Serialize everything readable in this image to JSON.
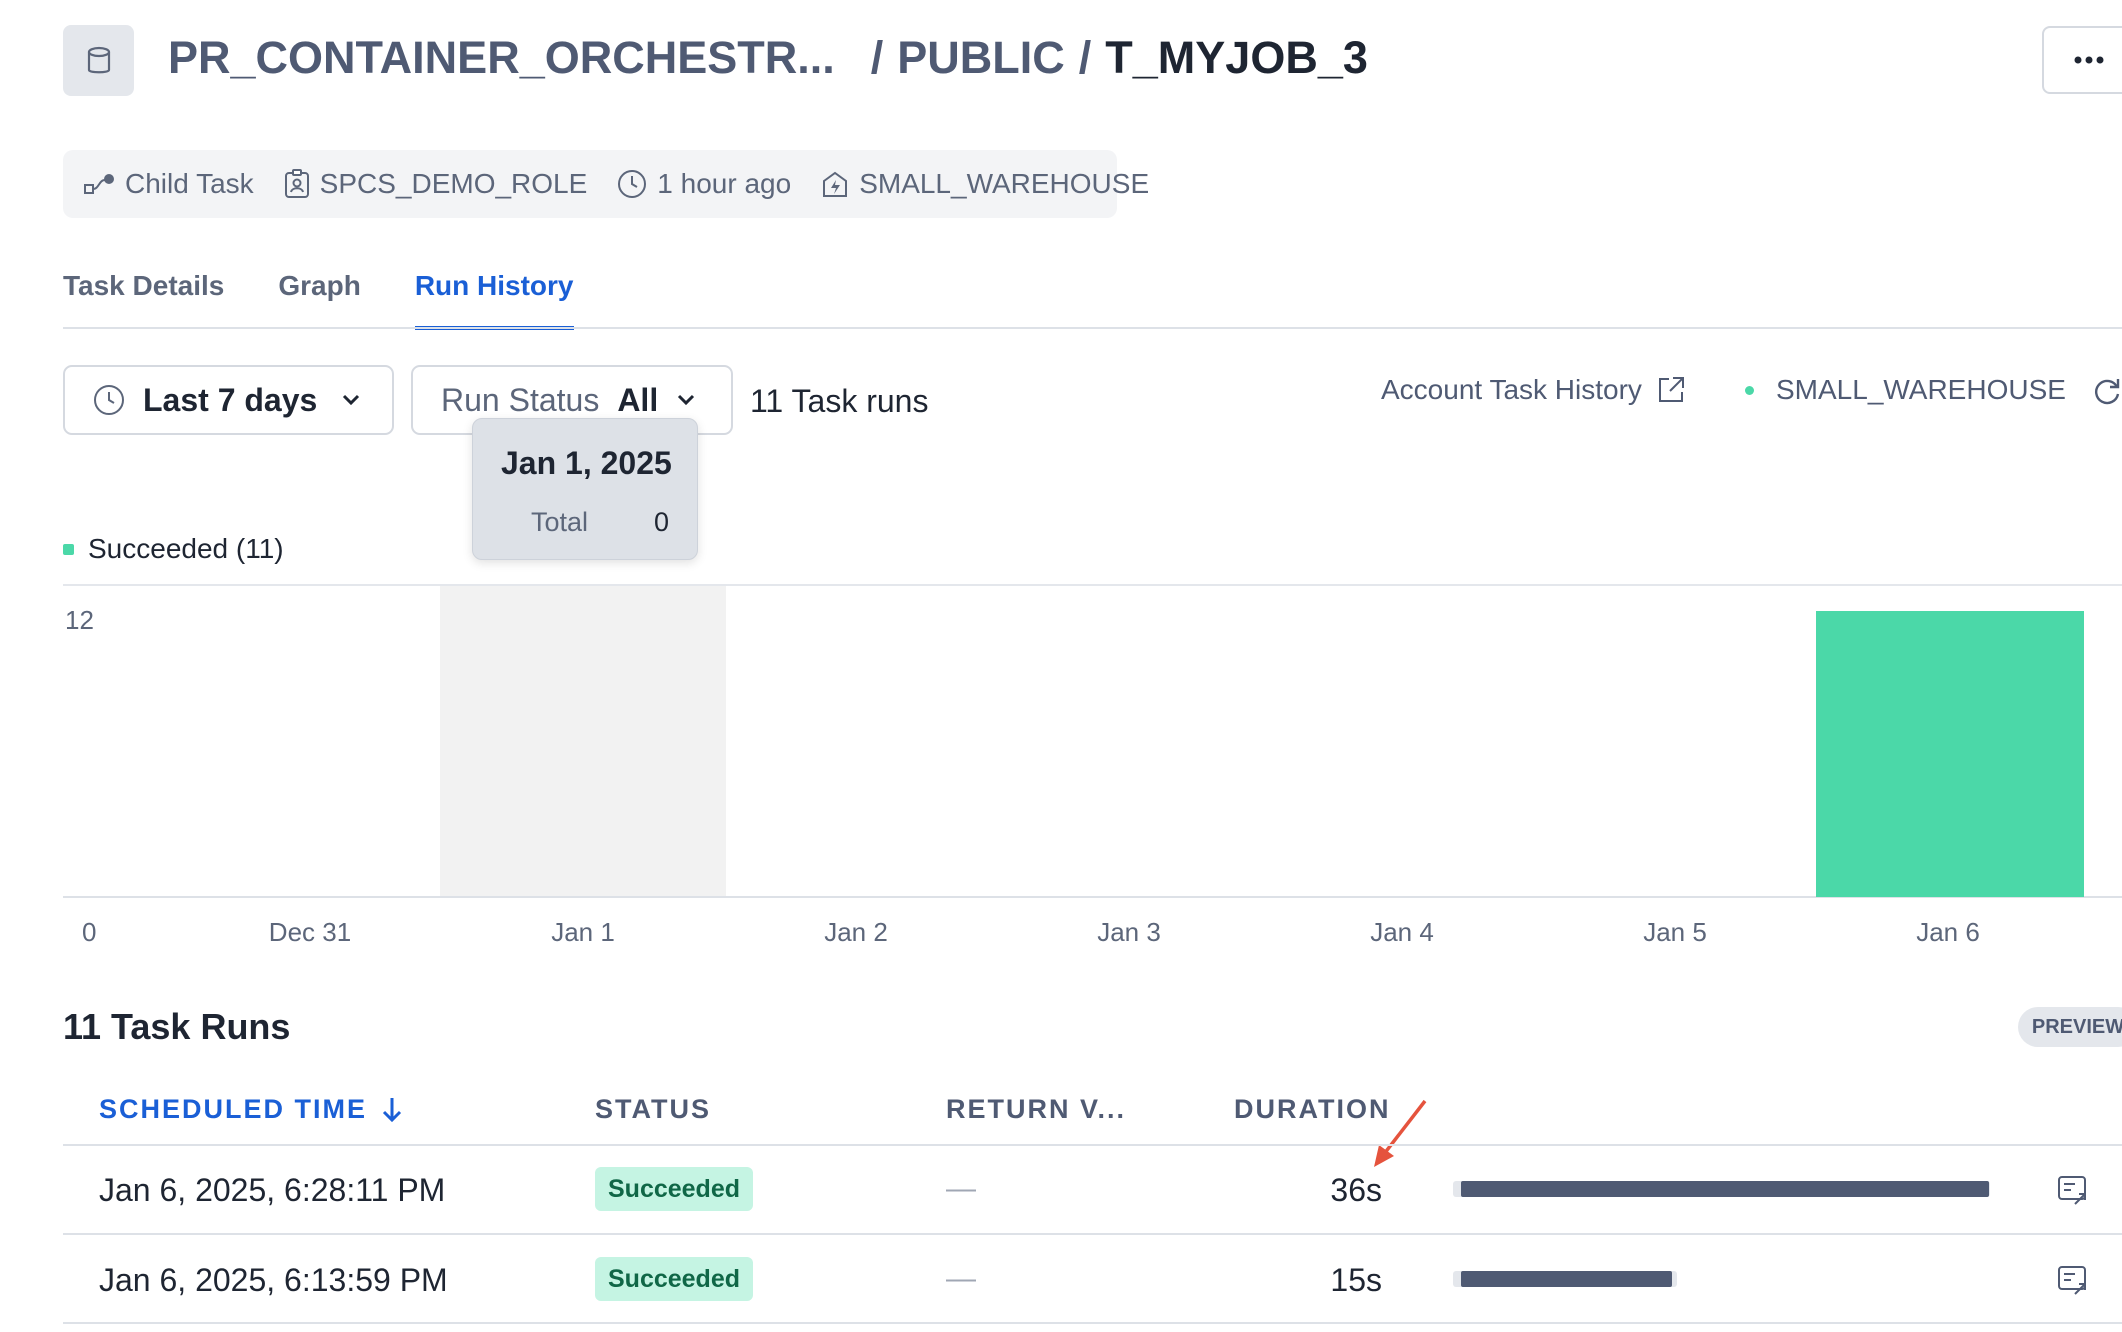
{
  "header": {
    "database": "PR_CONTAINER_ORCHESTR...",
    "separator1": "/",
    "schema": "PUBLIC",
    "separator2": "/",
    "task_name": "T_MYJOB_3",
    "more_label": "⋯"
  },
  "meta": {
    "type": "Child Task",
    "role": "SPCS_DEMO_ROLE",
    "updated": "1 hour ago",
    "warehouse": "SMALL_WAREHOUSE"
  },
  "tabs": [
    {
      "label": "Task Details",
      "active": false
    },
    {
      "label": "Graph",
      "active": false
    },
    {
      "label": "Run History",
      "active": true
    }
  ],
  "filters": {
    "range_label": "Last 7 days",
    "status_label": "Run Status",
    "status_value": "All",
    "runs_count_label": "11 Task runs",
    "account_link": "Account Task History",
    "warehouse": "SMALL_WAREHOUSE"
  },
  "tooltip": {
    "date": "Jan 1, 2025",
    "label": "Total",
    "value": "0"
  },
  "legend": {
    "label": "Succeeded (11)",
    "color": "#4bd8a8"
  },
  "chart_data": {
    "type": "bar",
    "categories": [
      "Dec 31",
      "Jan 1",
      "Jan 2",
      "Jan 3",
      "Jan 4",
      "Jan 5",
      "Jan 6"
    ],
    "series": [
      {
        "name": "Succeeded",
        "values": [
          0,
          0,
          0,
          0,
          0,
          0,
          11
        ],
        "color": "#4bd8a8"
      }
    ],
    "ylim": [
      0,
      12
    ],
    "yticks": [
      "0",
      "12"
    ],
    "highlighted_category": "Jan 1",
    "highlight_color": "#f2f2f2"
  },
  "table": {
    "title": "11 Task Runs",
    "preview_badge": "PREVIEW",
    "columns": {
      "scheduled": "SCHEDULED TIME",
      "status": "STATUS",
      "return_value": "RETURN V...",
      "duration": "DURATION"
    },
    "rows": [
      {
        "time": "Jan 6, 2025, 6:28:11 PM",
        "status": "Succeeded",
        "return_value": "—",
        "duration": "36s",
        "duration_fraction": 1.0
      },
      {
        "time": "Jan 6, 2025, 6:13:59 PM",
        "status": "Succeeded",
        "return_value": "—",
        "duration": "15s",
        "duration_fraction": 0.4
      }
    ]
  },
  "colors": {
    "accent": "#1a5fd6",
    "success": "#4bd8a8",
    "annotation": "#e5533d"
  }
}
